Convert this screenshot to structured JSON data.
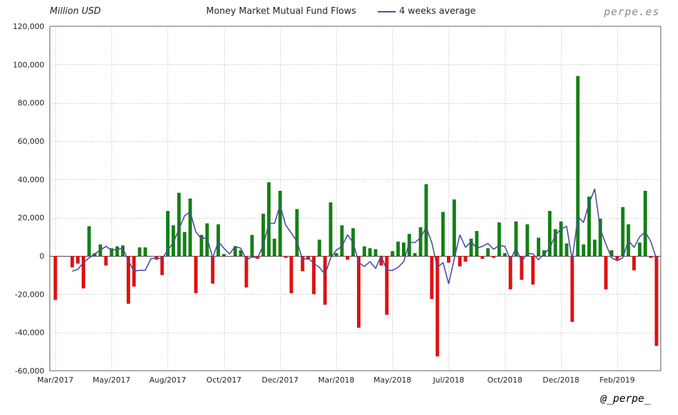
{
  "header": {
    "unit": "Million USD",
    "title": "Money Market Mutual Fund Flows",
    "legend_label": "4 weeks average"
  },
  "branding": {
    "site": "perpe.es",
    "handle": "@_perpe_"
  },
  "colors": {
    "positive_bar": "#138013",
    "negative_bar": "#e01010",
    "average_line": "#4a4aa0",
    "grid": "#b8b8b8",
    "brand_text": "#8a8a8a"
  },
  "chart_data": {
    "type": "bar",
    "title": "Money Market Mutual Fund Flows",
    "ylabel": "Million USD",
    "xlabel": "",
    "ylim": [
      -60000,
      120000
    ],
    "yticks": [
      120000,
      100000,
      80000,
      60000,
      40000,
      20000,
      0,
      -20000,
      -40000,
      -60000
    ],
    "ytick_labels": [
      "120,000",
      "100,000",
      "80,000",
      "60,000",
      "40,000",
      "20,000",
      "0",
      "-20,000",
      "-40,000",
      "-60,000"
    ],
    "xtick_labels": [
      "Mar/2017",
      "May/2017",
      "Aug/2017",
      "Oct/2017",
      "Dec/2017",
      "Mar/2018",
      "May/2018",
      "Jul/2018",
      "Oct/2018",
      "Dec/2018",
      "Feb/2019"
    ],
    "xtick_index": [
      0,
      10,
      20,
      30,
      40,
      50,
      60,
      70,
      80,
      90,
      100
    ],
    "grid": true,
    "legend_position": "top",
    "series": [
      {
        "type": "bar",
        "values": [
          -23000,
          0,
          0,
          -6000,
          -4000,
          -17000,
          15500,
          1500,
          6000,
          -5000,
          4000,
          5000,
          5500,
          -25000,
          -16000,
          4500,
          4500,
          0,
          -2000,
          -10000,
          23500,
          16000,
          33000,
          12500,
          30000,
          -19500,
          11000,
          17000,
          -14500,
          16500,
          1000,
          0,
          5000,
          3000,
          -16500,
          11000,
          -1500,
          22000,
          38500,
          9000,
          34000,
          -1000,
          -19500,
          24500,
          -8000,
          -2000,
          -20000,
          8500,
          -25500,
          28000,
          1500,
          16000,
          -2000,
          14500,
          -37500,
          5000,
          4000,
          3500,
          -5000,
          -30800,
          2500,
          7500,
          7000,
          11500,
          1500,
          15000,
          37500,
          -22500,
          -52500,
          23000,
          -3500,
          29500,
          -5500,
          -3000,
          9000,
          13000,
          -1500,
          4000,
          -1000,
          17500,
          1500,
          -17500,
          18000,
          -12500,
          16500,
          -15000,
          9500,
          3000,
          23500,
          14000,
          18000,
          6500,
          -34500,
          94000,
          6000,
          31000,
          8500,
          19500,
          -17500,
          3000,
          -2000,
          25500,
          16500,
          -7500,
          7000,
          34000,
          -1000,
          -47000
        ]
      },
      {
        "name": "4 weeks average",
        "type": "line",
        "values": [
          null,
          null,
          null,
          -8000,
          -7000,
          -3500,
          -1000,
          1000,
          3000,
          5000,
          3000,
          3500,
          4000,
          -2500,
          -8000,
          -7500,
          -7500,
          -1500,
          -1000,
          -1500,
          3000,
          7000,
          14000,
          21000,
          23000,
          12500,
          9000,
          9500,
          -1000,
          7500,
          4000,
          1000,
          5000,
          4000,
          -2000,
          -500,
          -1000,
          5500,
          17000,
          17000,
          26500,
          16000,
          12000,
          7500,
          -2000,
          -1000,
          -4000,
          -6000,
          -9500,
          -1000,
          3000,
          5000,
          11000,
          7000,
          -3500,
          -5500,
          -3000,
          -6500,
          0,
          -7500,
          -7500,
          -6000,
          -3000,
          7000,
          7000,
          9500,
          15000,
          7000,
          -6000,
          -3500,
          -14500,
          -1500,
          11000,
          4500,
          7500,
          4000,
          5000,
          6500,
          3500,
          5500,
          5000,
          -2000,
          4000,
          -3000,
          1500,
          1000,
          -2000,
          1000,
          4000,
          11000,
          14000,
          15500,
          -2000,
          20500,
          17500,
          27500,
          35000,
          14000,
          6000,
          -1000,
          -2500,
          -1000,
          8000,
          4500,
          10000,
          12500,
          7500,
          -1500
        ]
      }
    ]
  }
}
